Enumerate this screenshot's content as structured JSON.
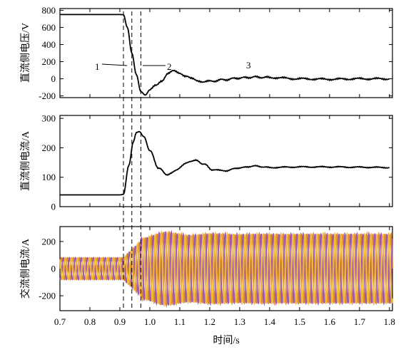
{
  "chart_data": {
    "type": "line",
    "xlabel": "时间/s",
    "x_ticks": [
      0.7,
      0.8,
      0.9,
      1.0,
      1.1,
      1.2,
      1.3,
      1.4,
      1.5,
      1.6,
      1.7,
      1.8
    ],
    "xlim": [
      0.7,
      1.81
    ],
    "event_times": [
      0.912,
      0.94,
      0.97
    ],
    "event_labels": [
      "1",
      "2",
      "3"
    ],
    "panels": [
      {
        "ylabel": "直流侧电压/V",
        "ylim": [
          -220,
          820
        ],
        "y_ticks": [
          -200,
          0,
          200,
          400,
          600,
          800
        ],
        "y_tick_labels": [
          "-200",
          "0",
          "200",
          "400",
          "600",
          "800"
        ],
        "series": [
          {
            "color": "#000000",
            "x": [
              0.7,
              0.8,
              0.9,
              0.912,
              0.925,
              0.94,
              0.955,
              0.97,
              0.985,
              1.0,
              1.02,
              1.04,
              1.06,
              1.08,
              1.1,
              1.12,
              1.14,
              1.16,
              1.18,
              1.2,
              1.25,
              1.3,
              1.35,
              1.4,
              1.5,
              1.6,
              1.7,
              1.8
            ],
            "y": [
              750,
              750,
              750,
              748,
              600,
              300,
              50,
              -150,
              -190,
              -130,
              -80,
              -20,
              60,
              90,
              70,
              30,
              0,
              -20,
              -35,
              -30,
              -10,
              10,
              20,
              15,
              0,
              -5,
              0,
              0
            ]
          }
        ]
      },
      {
        "ylabel": "直流侧电流/A",
        "ylim": [
          0,
          310
        ],
        "y_ticks": [
          0,
          100,
          200,
          300
        ],
        "y_tick_labels": [
          "0",
          "100",
          "200",
          "300"
        ],
        "series": [
          {
            "color": "#000000",
            "x": [
              0.7,
              0.8,
              0.9,
              0.912,
              0.93,
              0.945,
              0.955,
              0.965,
              0.98,
              1.0,
              1.03,
              1.06,
              1.09,
              1.12,
              1.15,
              1.18,
              1.21,
              1.25,
              1.3,
              1.35,
              1.4,
              1.5,
              1.6,
              1.7,
              1.8
            ],
            "y": [
              40,
              40,
              40,
              42,
              140,
              220,
              252,
              255,
              238,
              190,
              130,
              108,
              125,
              148,
              158,
              145,
              125,
              122,
              132,
              138,
              133,
              135,
              135,
              134,
              133
            ]
          }
        ]
      },
      {
        "ylabel": "交流侧电流/A",
        "ylim": [
          -310,
          310
        ],
        "y_ticks": [
          -200,
          0,
          200
        ],
        "y_tick_labels": [
          "-200",
          "0",
          "200"
        ],
        "series": [
          {
            "color": "#E0882F",
            "amp_before": 80,
            "amp_after": 255,
            "phase_deg": 0
          },
          {
            "color": "#9B59B6",
            "amp_before": 80,
            "amp_after": 255,
            "phase_deg": -120
          },
          {
            "color": "#EFB737",
            "amp_before": 80,
            "amp_after": 255,
            "phase_deg": 120
          }
        ]
      }
    ]
  }
}
